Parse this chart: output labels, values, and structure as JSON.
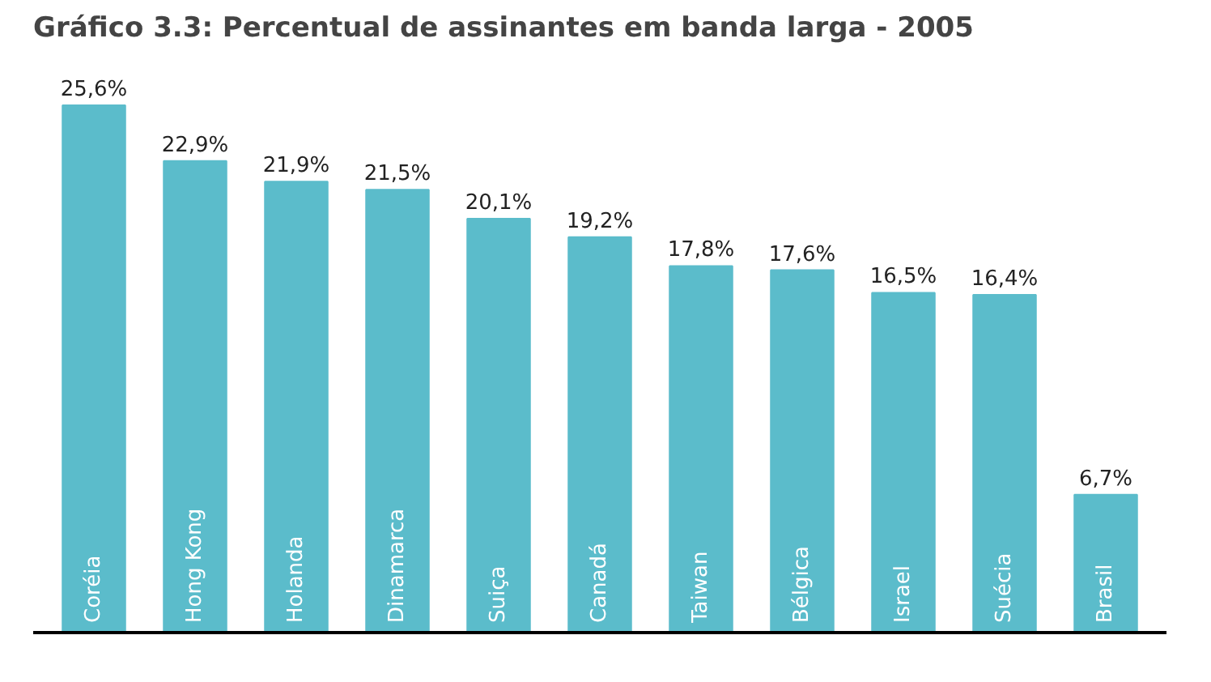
{
  "chart_data": {
    "type": "bar",
    "title": "Gráfico 3.3: Percentual de assinantes em banda larga - 2005",
    "categories": [
      "Coréia",
      "Hong Kong",
      "Holanda",
      "Dinamarca",
      "Suiça",
      "Canadá",
      "Taiwan",
      "Bélgica",
      "Israel",
      "Suécia",
      "Brasil"
    ],
    "values": [
      25.6,
      22.9,
      21.9,
      21.5,
      20.1,
      19.2,
      17.8,
      17.6,
      16.5,
      16.4,
      6.7
    ],
    "value_labels": [
      "25,6%",
      "22,9%",
      "21,9%",
      "21,5%",
      "20,1%",
      "19,2%",
      "17,8%",
      "17,6%",
      "16,5%",
      "16,4%",
      "6,7%"
    ],
    "color": "#5bbccb",
    "grid": false
  }
}
